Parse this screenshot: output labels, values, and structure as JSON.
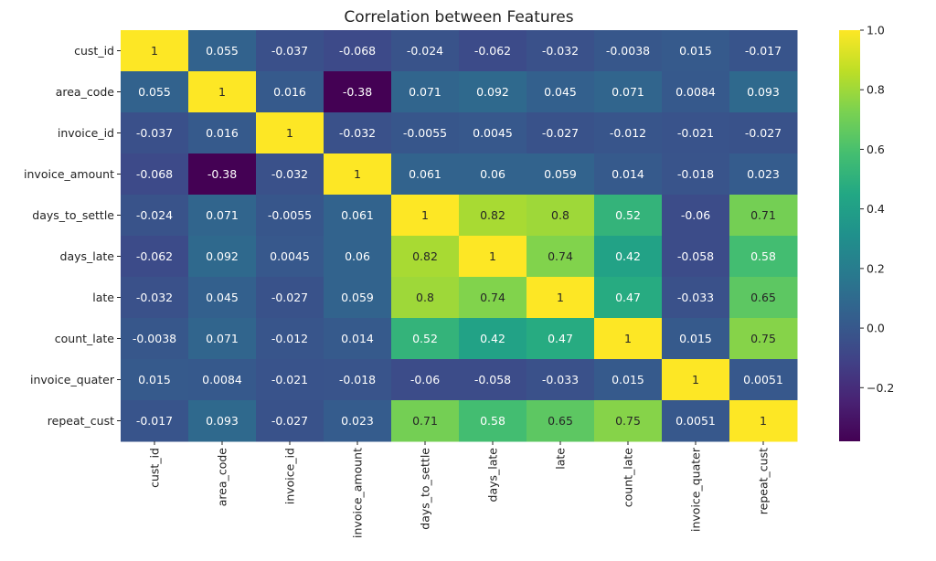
{
  "chart_data": {
    "type": "heatmap",
    "title": "Correlation between Features",
    "xlabel": "",
    "ylabel": "",
    "labels": [
      "cust_id",
      "area_code",
      "invoice_id",
      "invoice_amount",
      "days_to_settle",
      "days_late",
      "late",
      "count_late",
      "invoice_quater",
      "repeat_cust"
    ],
    "matrix": [
      [
        1,
        0.055,
        -0.037,
        -0.068,
        -0.024,
        -0.062,
        -0.032,
        -0.0038,
        0.015,
        -0.017
      ],
      [
        0.055,
        1,
        0.016,
        -0.38,
        0.071,
        0.092,
        0.045,
        0.071,
        0.0084,
        0.093
      ],
      [
        -0.037,
        0.016,
        1,
        -0.032,
        -0.0055,
        0.0045,
        -0.027,
        -0.012,
        -0.021,
        -0.027
      ],
      [
        -0.068,
        -0.38,
        -0.032,
        1,
        0.061,
        0.06,
        0.059,
        0.014,
        -0.018,
        0.023
      ],
      [
        -0.024,
        0.071,
        -0.0055,
        0.061,
        1,
        0.82,
        0.8,
        0.52,
        -0.06,
        0.71
      ],
      [
        -0.062,
        0.092,
        0.0045,
        0.06,
        0.82,
        1,
        0.74,
        0.42,
        -0.058,
        0.58
      ],
      [
        -0.032,
        0.045,
        -0.027,
        0.059,
        0.8,
        0.74,
        1,
        0.47,
        -0.033,
        0.65
      ],
      [
        -0.0038,
        0.071,
        -0.012,
        0.014,
        0.52,
        0.42,
        0.47,
        1,
        0.015,
        0.75
      ],
      [
        0.015,
        0.0084,
        -0.021,
        -0.018,
        -0.06,
        -0.058,
        -0.033,
        0.015,
        1,
        0.0051
      ],
      [
        -0.017,
        0.093,
        -0.027,
        0.023,
        0.71,
        0.58,
        0.65,
        0.75,
        0.0051,
        1
      ]
    ],
    "colormap": "viridis",
    "vmin": -0.38,
    "vmax": 1.0,
    "annotated": true,
    "colorbar": {
      "position": "right",
      "ticks": [
        1.0,
        0.8,
        0.6,
        0.4,
        0.2,
        0.0,
        -0.2
      ],
      "tick_labels": [
        "1.0",
        "0.8",
        "0.6",
        "0.4",
        "0.2",
        "0.0",
        "−0.2"
      ]
    },
    "colors": {
      "text_dark": "#262626",
      "text_light": "#ffffff"
    }
  }
}
